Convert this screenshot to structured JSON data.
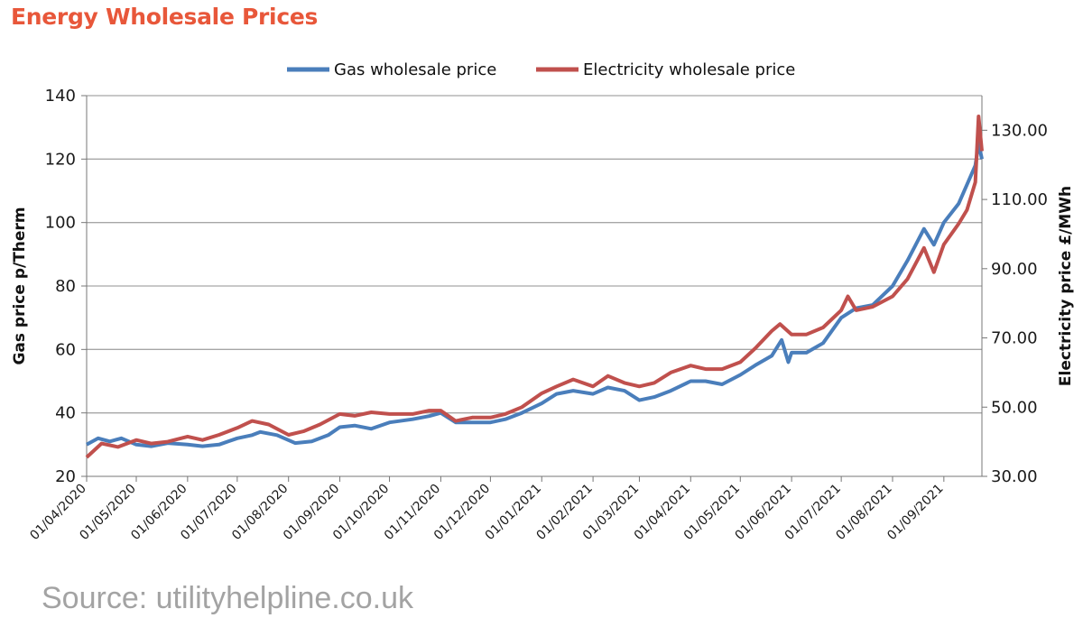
{
  "title": "Energy Wholesale Prices",
  "source": "Source: utilityhelpline.co.uk",
  "chart_data": {
    "type": "line",
    "title": "Energy Wholesale Prices",
    "ylabel": "Gas price p/Therm",
    "y2label": "Electricity price £/MWh",
    "ylim": [
      20,
      140
    ],
    "y2lim": [
      30,
      140
    ],
    "yticks": [
      20,
      40,
      60,
      80,
      100,
      120,
      140
    ],
    "y2ticks": [
      "30.00",
      "50.00",
      "70.00",
      "90.00",
      "110.00",
      "130.00"
    ],
    "xlim": [
      "2020-04-01",
      "2021-09-24"
    ],
    "xticks": [
      "01/04/2020",
      "01/05/2020",
      "01/06/2020",
      "01/07/2020",
      "01/08/2020",
      "01/09/2020",
      "01/10/2020",
      "01/11/2020",
      "01/12/2020",
      "01/01/2021",
      "01/02/2021",
      "01/03/2021",
      "01/04/2021",
      "01/05/2021",
      "01/06/2021",
      "01/07/2021",
      "01/08/2021",
      "01/09/2021"
    ],
    "grid": true,
    "legend_position": "top",
    "series": [
      {
        "name": "Gas wholesale price",
        "axis": "left",
        "color": "#4a7ebb",
        "points": [
          [
            "2020-04-01",
            30
          ],
          [
            "2020-04-08",
            32
          ],
          [
            "2020-04-15",
            31
          ],
          [
            "2020-04-22",
            32
          ],
          [
            "2020-05-01",
            30
          ],
          [
            "2020-05-10",
            29.5
          ],
          [
            "2020-05-20",
            30.5
          ],
          [
            "2020-06-01",
            30
          ],
          [
            "2020-06-10",
            29.5
          ],
          [
            "2020-06-20",
            30
          ],
          [
            "2020-07-01",
            32
          ],
          [
            "2020-07-10",
            33
          ],
          [
            "2020-07-15",
            34
          ],
          [
            "2020-07-25",
            33
          ],
          [
            "2020-08-05",
            30.5
          ],
          [
            "2020-08-15",
            31
          ],
          [
            "2020-08-25",
            33
          ],
          [
            "2020-09-01",
            35.5
          ],
          [
            "2020-09-10",
            36
          ],
          [
            "2020-09-20",
            35
          ],
          [
            "2020-10-01",
            37
          ],
          [
            "2020-10-15",
            38
          ],
          [
            "2020-10-25",
            39
          ],
          [
            "2020-11-01",
            40
          ],
          [
            "2020-11-10",
            37
          ],
          [
            "2020-11-20",
            37
          ],
          [
            "2020-12-01",
            37
          ],
          [
            "2020-12-10",
            38
          ],
          [
            "2020-12-20",
            40
          ],
          [
            "2021-01-01",
            43
          ],
          [
            "2021-01-10",
            46
          ],
          [
            "2021-01-20",
            47
          ],
          [
            "2021-02-01",
            46
          ],
          [
            "2021-02-10",
            48
          ],
          [
            "2021-02-20",
            47
          ],
          [
            "2021-03-01",
            44
          ],
          [
            "2021-03-10",
            45
          ],
          [
            "2021-03-20",
            47
          ],
          [
            "2021-04-01",
            50
          ],
          [
            "2021-04-10",
            50
          ],
          [
            "2021-04-20",
            49
          ],
          [
            "2021-05-01",
            52
          ],
          [
            "2021-05-10",
            55
          ],
          [
            "2021-05-20",
            58
          ],
          [
            "2021-05-26",
            63
          ],
          [
            "2021-05-30",
            56
          ],
          [
            "2021-06-01",
            59
          ],
          [
            "2021-06-10",
            59
          ],
          [
            "2021-06-20",
            62
          ],
          [
            "2021-07-01",
            70
          ],
          [
            "2021-07-10",
            73
          ],
          [
            "2021-07-20",
            74
          ],
          [
            "2021-08-01",
            80
          ],
          [
            "2021-08-10",
            88
          ],
          [
            "2021-08-20",
            98
          ],
          [
            "2021-08-26",
            93
          ],
          [
            "2021-09-01",
            100
          ],
          [
            "2021-09-10",
            106
          ],
          [
            "2021-09-15",
            112
          ],
          [
            "2021-09-20",
            118
          ],
          [
            "2021-09-22",
            125
          ],
          [
            "2021-09-24",
            120
          ]
        ]
      },
      {
        "name": "Electricity wholesale price",
        "axis": "right",
        "color": "#c0504d",
        "points": [
          [
            "2020-04-01",
            35.5
          ],
          [
            "2020-04-10",
            39.5
          ],
          [
            "2020-04-20",
            38.5
          ],
          [
            "2020-05-01",
            40.5
          ],
          [
            "2020-05-10",
            39.5
          ],
          [
            "2020-05-20",
            40
          ],
          [
            "2020-06-01",
            41.5
          ],
          [
            "2020-06-10",
            40.5
          ],
          [
            "2020-06-20",
            42
          ],
          [
            "2020-07-01",
            44
          ],
          [
            "2020-07-10",
            46
          ],
          [
            "2020-07-20",
            45
          ],
          [
            "2020-08-01",
            42
          ],
          [
            "2020-08-10",
            43
          ],
          [
            "2020-08-20",
            45
          ],
          [
            "2020-09-01",
            48
          ],
          [
            "2020-09-10",
            47.5
          ],
          [
            "2020-09-20",
            48.5
          ],
          [
            "2020-10-01",
            48
          ],
          [
            "2020-10-15",
            48
          ],
          [
            "2020-10-25",
            49
          ],
          [
            "2020-11-01",
            49
          ],
          [
            "2020-11-10",
            46
          ],
          [
            "2020-11-20",
            47
          ],
          [
            "2020-12-01",
            47
          ],
          [
            "2020-12-10",
            48
          ],
          [
            "2020-12-20",
            50
          ],
          [
            "2021-01-01",
            54
          ],
          [
            "2021-01-10",
            56
          ],
          [
            "2021-01-20",
            58
          ],
          [
            "2021-02-01",
            56
          ],
          [
            "2021-02-10",
            59
          ],
          [
            "2021-02-20",
            57
          ],
          [
            "2021-03-01",
            56
          ],
          [
            "2021-03-10",
            57
          ],
          [
            "2021-03-20",
            60
          ],
          [
            "2021-04-01",
            62
          ],
          [
            "2021-04-10",
            61
          ],
          [
            "2021-04-20",
            61
          ],
          [
            "2021-05-01",
            63
          ],
          [
            "2021-05-10",
            67
          ],
          [
            "2021-05-20",
            72
          ],
          [
            "2021-05-25",
            74
          ],
          [
            "2021-06-01",
            71
          ],
          [
            "2021-06-10",
            71
          ],
          [
            "2021-06-20",
            73
          ],
          [
            "2021-07-01",
            78
          ],
          [
            "2021-07-05",
            82
          ],
          [
            "2021-07-10",
            78
          ],
          [
            "2021-07-20",
            79
          ],
          [
            "2021-08-01",
            82
          ],
          [
            "2021-08-10",
            87
          ],
          [
            "2021-08-20",
            96
          ],
          [
            "2021-08-26",
            89
          ],
          [
            "2021-09-01",
            97
          ],
          [
            "2021-09-10",
            103
          ],
          [
            "2021-09-15",
            107
          ],
          [
            "2021-09-20",
            115
          ],
          [
            "2021-09-22",
            134
          ],
          [
            "2021-09-24",
            124
          ]
        ]
      }
    ]
  }
}
